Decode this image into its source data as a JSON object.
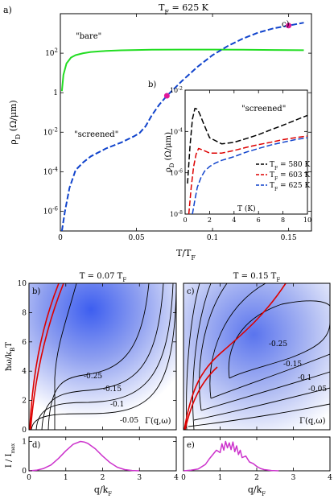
{
  "chart_data": [
    {
      "id": "a",
      "type": "line",
      "panel_label": "a)",
      "title": "T_F = 625 K",
      "xlabel": "T/T_F",
      "ylabel": "ρ_D (Ω/μm)",
      "y_scale": "log",
      "xlim": [
        0,
        0.165
      ],
      "ylim": [
        1e-07,
        10000
      ],
      "xticks": [
        "0",
        "0.05",
        "0.1",
        "0.15"
      ],
      "yticks": [
        "10^-6",
        "10^-4",
        "10^-2",
        "1",
        "10^2"
      ],
      "annotations": [
        "\"bare\"",
        "\"screened\"",
        "b)",
        "c)"
      ],
      "markers": [
        {
          "label": "b)",
          "x": 0.07,
          "y": 0.7
        },
        {
          "label": "c)",
          "x": 0.15,
          "y": 2500
        }
      ],
      "series": [
        {
          "name": "bare",
          "color": "#22dd22",
          "style": "solid",
          "x": [
            0.001,
            0.002,
            0.004,
            0.007,
            0.01,
            0.015,
            0.02,
            0.03,
            0.04,
            0.06,
            0.08,
            0.1,
            0.12,
            0.14,
            0.16
          ],
          "y": [
            1.2,
            8,
            30,
            60,
            80,
            100,
            115,
            130,
            140,
            150,
            152,
            152,
            150,
            146,
            142
          ]
        },
        {
          "name": "screened",
          "color": "#1144cc",
          "style": "dashed",
          "x": [
            0.001,
            0.003,
            0.006,
            0.01,
            0.015,
            0.02,
            0.03,
            0.04,
            0.048,
            0.052,
            0.056,
            0.06,
            0.065,
            0.07,
            0.08,
            0.09,
            0.1,
            0.11,
            0.12,
            0.13,
            0.14,
            0.15,
            0.16
          ],
          "y": [
            1e-07,
            1e-06,
            1.5e-05,
            0.00012,
            0.0003,
            0.0006,
            0.0015,
            0.003,
            0.006,
            0.009,
            0.02,
            0.07,
            0.25,
            0.7,
            4,
            20,
            80,
            230,
            550,
            1100,
            1800,
            2500,
            3500
          ]
        }
      ]
    },
    {
      "id": "a-inset",
      "type": "line",
      "xlabel": "T (K)",
      "ylabel": "ρ_D (Ω/μm)",
      "y_scale": "log",
      "xlim": [
        0,
        10
      ],
      "ylim": [
        1e-08,
        0.01
      ],
      "xticks": [
        "0",
        "2",
        "4",
        "6",
        "8",
        "10"
      ],
      "yticks": [
        "10^-8",
        "10^-6",
        "10^-4",
        "10^-2"
      ],
      "annotation": "\"screened\"",
      "legend_position": "bottom-right",
      "series": [
        {
          "name": "T_F = 580 K",
          "color": "#000000",
          "style": "dashed",
          "x": [
            0.2,
            0.4,
            0.6,
            0.8,
            1.0,
            1.2,
            1.5,
            2,
            3,
            4,
            5,
            6,
            7,
            8,
            9,
            10
          ],
          "y": [
            3e-07,
            2e-05,
            0.0004,
            0.0013,
            0.0012,
            0.0007,
            0.00025,
            5e-05,
            2.5e-05,
            3e-05,
            4.5e-05,
            7e-05,
            0.00012,
            0.0002,
            0.00035,
            0.0006
          ]
        },
        {
          "name": "T_F = 603 K",
          "color": "#dd0000",
          "style": "dashed",
          "x": [
            0.3,
            0.5,
            0.7,
            0.9,
            1.1,
            1.4,
            2,
            3,
            4,
            5,
            6,
            7,
            8,
            9,
            10
          ],
          "y": [
            1e-08,
            2e-07,
            2e-06,
            8e-06,
            1.5e-05,
            1.3e-05,
            9e-06,
            9e-06,
            1.2e-05,
            1.7e-05,
            2.3e-05,
            3e-05,
            4e-05,
            5e-05,
            6e-05
          ]
        },
        {
          "name": "T_F = 625 K",
          "color": "#1144cc",
          "style": "dashed",
          "x": [
            0.6,
            0.8,
            1.0,
            1.3,
            1.6,
            2,
            2.5,
            3,
            4,
            5,
            6,
            7,
            8,
            9,
            10
          ],
          "y": [
            1e-08,
            5e-08,
            2e-07,
            6e-07,
            1.2e-06,
            2e-06,
            3e-06,
            4e-06,
            6e-06,
            1e-05,
            1.5e-05,
            2.2e-05,
            3e-05,
            4e-05,
            5e-05
          ]
        }
      ]
    },
    {
      "id": "b",
      "type": "heatmap",
      "panel_label": "b)",
      "title": "T = 0.07 T_F",
      "xlabel": "",
      "ylabel": "ħω/k_BT",
      "xlim": [
        0,
        4
      ],
      "ylim": [
        0,
        10
      ],
      "xticks": [
        "0",
        "1",
        "2",
        "3",
        "4"
      ],
      "yticks": [
        "0",
        "2",
        "4",
        "6",
        "8",
        "10"
      ],
      "colorbar": "none",
      "contour_labels": [
        "-0.25",
        "-0.15",
        "-0.1",
        "-0.05"
      ],
      "function_label": "Γ(q,ω)"
    },
    {
      "id": "c",
      "type": "heatmap",
      "panel_label": "c)",
      "title": "T = 0.15 T_F",
      "xlabel": "",
      "ylabel": "",
      "xlim": [
        0,
        4
      ],
      "ylim": [
        0,
        10
      ],
      "xticks": [
        "0",
        "1",
        "2",
        "3",
        "4"
      ],
      "yticks": [],
      "contour_labels": [
        "-0.25",
        "-0.15",
        "-0.1",
        "-0.05"
      ],
      "function_label": "Γ(q,ω)"
    },
    {
      "id": "d",
      "type": "line",
      "panel_label": "d)",
      "xlabel": "q/k_F",
      "ylabel": "I / I_max",
      "xlim": [
        0,
        4
      ],
      "ylim": [
        0,
        1.15
      ],
      "xticks": [
        "0",
        "1",
        "2",
        "3",
        "4"
      ],
      "yticks": [
        "0",
        "1"
      ],
      "series": [
        {
          "color": "#cc33cc",
          "x": [
            0,
            0.2,
            0.4,
            0.6,
            0.8,
            1.0,
            1.2,
            1.4,
            1.5,
            1.6,
            1.8,
            2.0,
            2.2,
            2.4,
            2.6,
            2.8,
            3.0
          ],
          "y": [
            0,
            0.02,
            0.08,
            0.2,
            0.42,
            0.68,
            0.9,
            1.0,
            0.98,
            0.93,
            0.75,
            0.5,
            0.28,
            0.12,
            0.04,
            0.01,
            0
          ]
        }
      ]
    },
    {
      "id": "e",
      "type": "line",
      "panel_label": "e)",
      "xlabel": "q/k_F",
      "ylabel": "",
      "xlim": [
        0,
        4
      ],
      "ylim": [
        0,
        1.15
      ],
      "xticks": [
        "0",
        "1",
        "2",
        "3",
        "4"
      ],
      "yticks": [],
      "series": [
        {
          "color": "#cc33cc",
          "x": [
            0,
            0.2,
            0.4,
            0.6,
            0.7,
            0.8,
            0.9,
            1.0,
            1.05,
            1.1,
            1.15,
            1.2,
            1.25,
            1.3,
            1.35,
            1.4,
            1.45,
            1.5,
            1.55,
            1.6,
            1.7,
            1.8,
            1.9,
            2.0,
            2.1,
            2.2,
            2.4,
            2.6
          ],
          "y": [
            0,
            0.02,
            0.06,
            0.22,
            0.4,
            0.55,
            0.7,
            0.62,
            0.92,
            0.7,
            1.0,
            0.78,
            0.95,
            0.72,
            0.98,
            0.65,
            0.85,
            0.55,
            0.7,
            0.45,
            0.5,
            0.3,
            0.25,
            0.15,
            0.08,
            0.04,
            0.01,
            0
          ]
        }
      ]
    }
  ],
  "labels": {
    "title_a_T": "T",
    "title_a_F": "F",
    "title_a_rest": " = 625 K",
    "rho": "ρ",
    "rho_sub": "D",
    "rho_unit": "(Ω/μm)",
    "xlabel_a_T": "T/T",
    "xlabel_a_F": "F",
    "inset_T": "T (K)",
    "legend_T": "T",
    "legend_F": "F",
    "legend_vals": [
      " = 580 K",
      " = 603 K",
      " = 625 K"
    ],
    "title_b_pre": "T = 0.07 T",
    "title_c_pre": "T = 0.15 T",
    "sub_F": "F",
    "ylab_b_pre": "ħω/k",
    "ylab_b_sub": "B",
    "ylab_b_post": "T",
    "ylab_d": "I / I",
    "ylab_d_sub": "max",
    "xlab_q": "q/k",
    "xlab_q_sub": "F"
  }
}
